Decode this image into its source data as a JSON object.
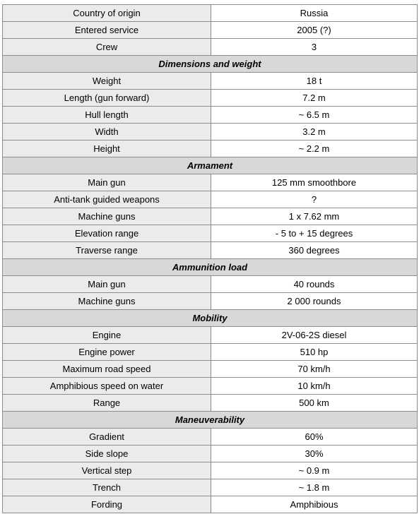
{
  "groups": [
    {
      "title": "",
      "rows": [
        {
          "label": "Country of origin",
          "value": "Russia"
        },
        {
          "label": "Entered service",
          "value": "2005 (?)"
        },
        {
          "label": "Crew",
          "value": "3"
        }
      ]
    },
    {
      "title": "Dimensions and weight",
      "rows": [
        {
          "label": "Weight",
          "value": "18 t"
        },
        {
          "label": "Length (gun forward)",
          "value": "7.2 m"
        },
        {
          "label": "Hull length",
          "value": "~ 6.5 m"
        },
        {
          "label": "Width",
          "value": "3.2 m"
        },
        {
          "label": "Height",
          "value": "~ 2.2 m"
        }
      ]
    },
    {
      "title": "Armament",
      "rows": [
        {
          "label": "Main gun",
          "value": "125 mm smoothbore"
        },
        {
          "label": "Anti-tank guided weapons",
          "value": "?"
        },
        {
          "label": "Machine guns",
          "value": "1 x 7.62 mm"
        },
        {
          "label": "Elevation range",
          "value": "- 5 to + 15 degrees"
        },
        {
          "label": "Traverse range",
          "value": "360 degrees"
        }
      ]
    },
    {
      "title": "Ammunition load",
      "rows": [
        {
          "label": "Main gun",
          "value": "40 rounds"
        },
        {
          "label": "Machine guns",
          "value": "2 000 rounds"
        }
      ]
    },
    {
      "title": "Mobility",
      "rows": [
        {
          "label": "Engine",
          "value": "2V-06-2S diesel"
        },
        {
          "label": "Engine power",
          "value": "510 hp"
        },
        {
          "label": "Maximum road speed",
          "value": "70 km/h"
        },
        {
          "label": "Amphibious speed on water",
          "value": "10 km/h"
        },
        {
          "label": "Range",
          "value": "500 km"
        }
      ]
    },
    {
      "title": "Maneuverability",
      "rows": [
        {
          "label": "Gradient",
          "value": "60%"
        },
        {
          "label": "Side slope",
          "value": "30%"
        },
        {
          "label": "Vertical step",
          "value": "~ 0.9 m"
        },
        {
          "label": "Trench",
          "value": "~ 1.8 m"
        },
        {
          "label": "Fording",
          "value": "Amphibious"
        }
      ]
    }
  ]
}
